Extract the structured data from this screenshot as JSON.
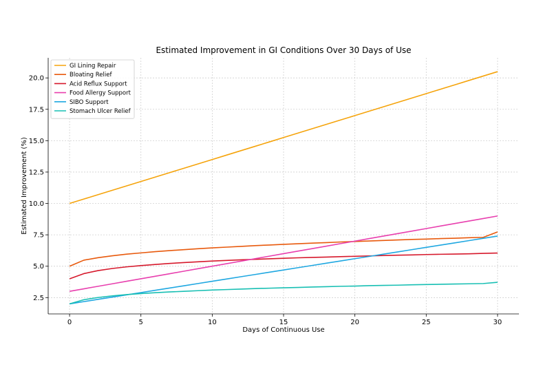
{
  "chart_data": {
    "type": "line",
    "title": "Estimated Improvement in GI Conditions Over 30 Days of Use",
    "xlabel": "Days of Continuous Use",
    "ylabel": "Estimated Improvement (%)",
    "xlim": [
      -1.5,
      31.5
    ],
    "ylim": [
      1.2,
      21.6
    ],
    "xticks": [
      0,
      5,
      10,
      15,
      20,
      25,
      30
    ],
    "xtick_labels": [
      "0",
      "5",
      "10",
      "15",
      "20",
      "25",
      "30"
    ],
    "yticks": [
      2.5,
      5.0,
      7.5,
      10.0,
      12.5,
      15.0,
      17.5,
      20.0
    ],
    "ytick_labels": [
      "2.5",
      "5.0",
      "7.5",
      "10.0",
      "12.5",
      "15.0",
      "17.5",
      "20.0"
    ],
    "grid": true,
    "legend": "top-left",
    "x": [
      0,
      1,
      2,
      3,
      4,
      5,
      6,
      7,
      8,
      9,
      10,
      11,
      12,
      13,
      14,
      15,
      16,
      17,
      18,
      19,
      20,
      21,
      22,
      23,
      24,
      25,
      26,
      27,
      28,
      29,
      30
    ],
    "series": [
      {
        "name": "GI Lining Repair",
        "color": "#f5a30a",
        "values": [
          10.0,
          10.35,
          10.7,
          11.05,
          11.4,
          11.75,
          12.1,
          12.45,
          12.8,
          13.15,
          13.5,
          13.85,
          14.2,
          14.55,
          14.9,
          15.25,
          15.6,
          15.95,
          16.3,
          16.65,
          17.0,
          17.35,
          17.7,
          18.05,
          18.4,
          18.75,
          19.1,
          19.45,
          19.8,
          20.15,
          20.5
        ]
      },
      {
        "name": "Bloating Relief",
        "color": "#e8590c",
        "values": [
          5.0,
          5.48,
          5.68,
          5.83,
          5.96,
          6.06,
          6.16,
          6.24,
          6.32,
          6.39,
          6.46,
          6.52,
          6.58,
          6.64,
          6.69,
          6.74,
          6.79,
          6.84,
          6.88,
          6.93,
          6.97,
          7.01,
          7.05,
          7.09,
          7.13,
          7.16,
          7.2,
          7.23,
          7.27,
          7.3,
          7.73
        ]
      },
      {
        "name": "Acid Reflux Support",
        "color": "#d6182b",
        "values": [
          4.0,
          4.41,
          4.65,
          4.82,
          4.95,
          5.05,
          5.14,
          5.22,
          5.29,
          5.35,
          5.41,
          5.46,
          5.51,
          5.55,
          5.59,
          5.63,
          5.67,
          5.7,
          5.73,
          5.76,
          5.79,
          5.82,
          5.85,
          5.88,
          5.9,
          5.93,
          5.95,
          5.97,
          5.99,
          6.02,
          6.05
        ]
      },
      {
        "name": "Food Allergy Support",
        "color": "#e83fae",
        "values": [
          3.0,
          3.2,
          3.4,
          3.6,
          3.8,
          4.0,
          4.2,
          4.4,
          4.6,
          4.8,
          5.0,
          5.2,
          5.4,
          5.6,
          5.8,
          6.0,
          6.2,
          6.4,
          6.6,
          6.8,
          7.0,
          7.2,
          7.4,
          7.6,
          7.8,
          8.0,
          8.2,
          8.4,
          8.6,
          8.8,
          9.0
        ]
      },
      {
        "name": "SIBO Support",
        "color": "#1ea7e1",
        "values": [
          2.0,
          2.18,
          2.36,
          2.54,
          2.72,
          2.9,
          3.08,
          3.26,
          3.44,
          3.62,
          3.8,
          3.98,
          4.16,
          4.34,
          4.52,
          4.7,
          4.88,
          5.06,
          5.24,
          5.42,
          5.6,
          5.78,
          5.96,
          6.14,
          6.32,
          6.5,
          6.68,
          6.86,
          7.04,
          7.22,
          7.4
        ]
      },
      {
        "name": "Stomach Ulcer Relief",
        "color": "#17bfb3",
        "values": [
          2.0,
          2.33,
          2.51,
          2.64,
          2.74,
          2.82,
          2.89,
          2.95,
          3.0,
          3.05,
          3.1,
          3.14,
          3.18,
          3.22,
          3.25,
          3.28,
          3.31,
          3.34,
          3.37,
          3.4,
          3.42,
          3.45,
          3.47,
          3.49,
          3.52,
          3.54,
          3.56,
          3.58,
          3.6,
          3.62,
          3.72
        ]
      }
    ]
  }
}
